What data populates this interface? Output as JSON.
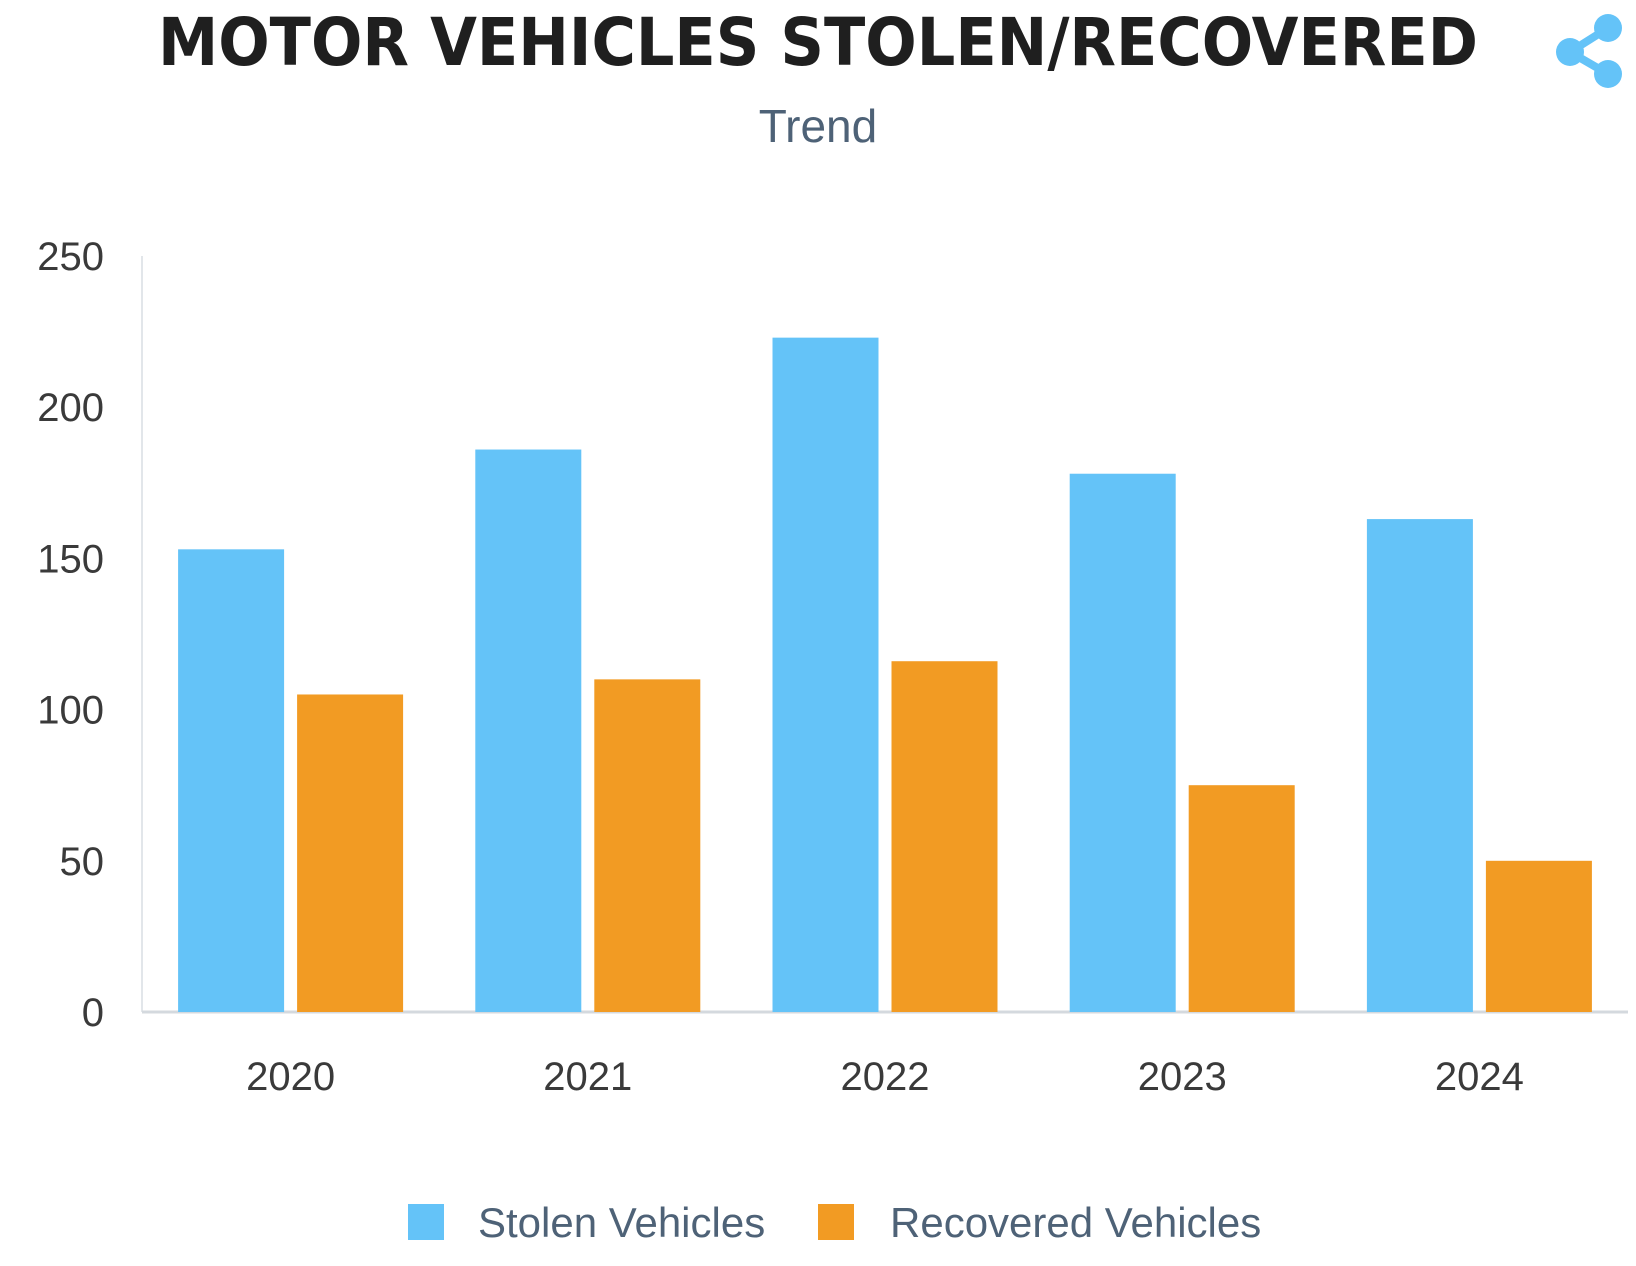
{
  "header": {
    "title": "MOTOR VEHICLES STOLEN/RECOVERED",
    "subtitle": "Trend"
  },
  "share_icon": {
    "icon": "share-icon",
    "color": "#64c3f8"
  },
  "chart_data": {
    "type": "bar",
    "title": "MOTOR VEHICLES STOLEN/RECOVERED",
    "subtitle": "Trend",
    "xlabel": "",
    "ylabel": "",
    "categories": [
      "2020",
      "2021",
      "2022",
      "2023",
      "2024"
    ],
    "series": [
      {
        "name": "Stolen Vehicles",
        "color": "#64c3f8",
        "values": [
          153,
          186,
          223,
          178,
          163
        ]
      },
      {
        "name": "Recovered Vehicles",
        "color": "#f29b23",
        "values": [
          105,
          110,
          116,
          75,
          50
        ]
      }
    ],
    "ylim": [
      0,
      250
    ],
    "yticks": [
      "0",
      "50",
      "100",
      "150",
      "200",
      "250"
    ],
    "grid": false,
    "legend": "bottom"
  }
}
